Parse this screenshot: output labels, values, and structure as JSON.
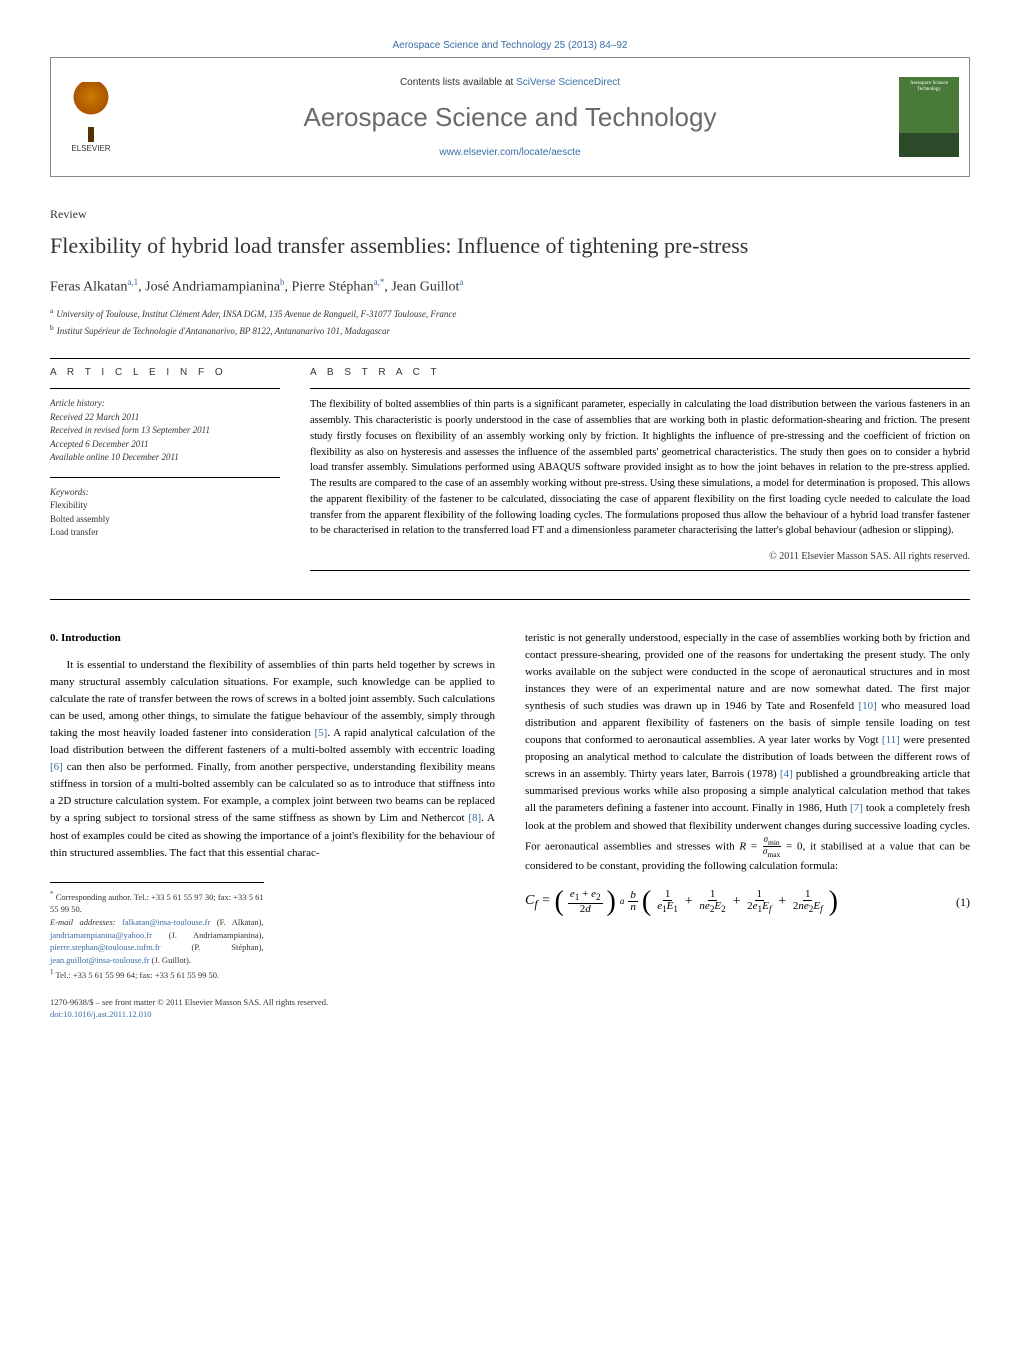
{
  "journal_ref": "Aerospace Science and Technology 25 (2013) 84–92",
  "header": {
    "publisher": "ELSEVIER",
    "contents_prefix": "Contents lists available at ",
    "contents_link": "SciVerse ScienceDirect",
    "journal_name": "Aerospace Science and Technology",
    "journal_url": "www.elsevier.com/locate/aescte",
    "cover_text": "Aerospace Science Technology"
  },
  "article": {
    "type": "Review",
    "title": "Flexibility of hybrid load transfer assemblies: Influence of tightening pre-stress",
    "authors_html": "Feras Alkatan",
    "authors": [
      {
        "name": "Feras Alkatan",
        "sup": "a,1"
      },
      {
        "name": "José Andriamampianina",
        "sup": "b"
      },
      {
        "name": "Pierre Stéphan",
        "sup": "a,*"
      },
      {
        "name": "Jean Guillot",
        "sup": "a"
      }
    ],
    "affiliations": [
      {
        "label": "a",
        "text": "University of Toulouse, Institut Clément Ader, INSA DGM, 135 Avenue de Rangueil, F-31077 Toulouse, France"
      },
      {
        "label": "b",
        "text": "Institut Supérieur de Technologie d'Antananarivo, BP 8122, Antananarivo 101, Madagascar"
      }
    ]
  },
  "info": {
    "heading": "A R T I C L E   I N F O",
    "history_label": "Article history:",
    "history": [
      "Received 22 March 2011",
      "Received in revised form 13 September 2011",
      "Accepted 6 December 2011",
      "Available online 10 December 2011"
    ],
    "keywords_label": "Keywords:",
    "keywords": [
      "Flexibility",
      "Bolted assembly",
      "Load transfer"
    ]
  },
  "abstract": {
    "heading": "A B S T R A C T",
    "text": "The flexibility of bolted assemblies of thin parts is a significant parameter, especially in calculating the load distribution between the various fasteners in an assembly. This characteristic is poorly understood in the case of assemblies that are working both in plastic deformation-shearing and friction. The present study firstly focuses on flexibility of an assembly working only by friction. It highlights the influence of pre-stressing and the coefficient of friction on flexibility as also on hysteresis and assesses the influence of the assembled parts' geometrical characteristics. The study then goes on to consider a hybrid load transfer assembly. Simulations performed using ABAQUS software provided insight as to how the joint behaves in relation to the pre-stress applied. The results are compared to the case of an assembly working without pre-stress. Using these simulations, a model for determination is proposed. This allows the apparent flexibility of the fastener to be calculated, dissociating the case of apparent flexibility on the first loading cycle needed to calculate the load transfer from the apparent flexibility of the following loading cycles. The formulations proposed thus allow the behaviour of a hybrid load transfer fastener to be characterised in relation to the transferred load FT and a dimensionless parameter characterising the latter's global behaviour (adhesion or slipping).",
    "copyright": "© 2011 Elsevier Masson SAS. All rights reserved."
  },
  "body": {
    "section_heading": "0. Introduction",
    "col1_p1": "It is essential to understand the flexibility of assemblies of thin parts held together by screws in many structural assembly calculation situations. For example, such knowledge can be applied to calculate the rate of transfer between the rows of screws in a bolted joint assembly. Such calculations can be used, among other things, to simulate the fatigue behaviour of the assembly, simply through taking the most heavily loaded fastener into consideration [5]. A rapid analytical calculation of the load distribution between the different fasteners of a multi-bolted assembly with eccentric loading [6] can then also be performed. Finally, from another perspective, understanding flexibility means stiffness in torsion of a multi-bolted assembly can be calculated so as to introduce that stiffness into a 2D structure calculation system. For example, a complex joint between two beams can be replaced by a spring subject to torsional stress of the same stiffness as shown by Lim and Nethercot [8]. A host of examples could be cited as showing the importance of a joint's flexibility for the behaviour of thin structured assemblies. The fact that this essential charac-",
    "col2_p1": "teristic is not generally understood, especially in the case of assemblies working both by friction and contact pressure-shearing, provided one of the reasons for undertaking the present study. The only works available on the subject were conducted in the scope of aeronautical structures and in most instances they were of an experimental nature and are now somewhat dated. The first major synthesis of such studies was drawn up in 1946 by Tate and Rosenfeld [10] who measured load distribution and apparent flexibility of fasteners on the basis of simple tensile loading on test coupons that conformed to aeronautical assemblies. A year later works by Vogt [11] were presented proposing an analytical method to calculate the distribution of loads between the different rows of screws in an assembly. Thirty years later, Barrois (1978) [4] published a groundbreaking article that summarised previous works while also proposing a simple analytical calculation method that takes all the parameters defining a fastener into account. Finally in 1986, Huth [7] took a completely fresh look at the problem and showed that flexibility underwent changes during successive loading cycles. For aeronautical assemblies and stresses with R = σmin/σmax = 0, it stabilised at a value that can be considered to be constant, providing the following calculation formula:",
    "refs": {
      "r4": "[4]",
      "r5": "[5]",
      "r6": "[6]",
      "r7": "[7]",
      "r8": "[8]",
      "r10": "[10]",
      "r11": "[11]"
    },
    "equation": {
      "label": "(1)",
      "lhs": "Cf",
      "term1_num": "e1 + e2",
      "term1_den": "2d",
      "exp": "a",
      "coef_num": "b",
      "coef_den": "n",
      "f1_num": "1",
      "f1_den": "e1E1",
      "f2_num": "1",
      "f2_den": "ne2E2",
      "f3_num": "1",
      "f3_den": "2e1Ef",
      "f4_num": "1",
      "f4_den": "2ne2Ef"
    }
  },
  "footnotes": {
    "corr_label": "*",
    "corr_text": "Corresponding author. Tel.: +33 5 61 55 97 30; fax: +33 5 61 55 99 50.",
    "email_label": "E-mail addresses:",
    "emails": [
      {
        "addr": "falkatan@insa-toulouse.fr",
        "who": "(F. Alkatan)"
      },
      {
        "addr": "jandriamampianina@yahoo.fr",
        "who": "(J. Andriamampianina)"
      },
      {
        "addr": "pierre.stephan@toulouse.iufm.fr",
        "who": "(P. Stéphan)"
      },
      {
        "addr": "jean.guillot@insa-toulouse.fr",
        "who": "(J. Guillot)"
      }
    ],
    "note1_label": "1",
    "note1_text": "Tel.: +33 5 61 55 99 64; fax: +33 5 61 55 99 50."
  },
  "footer": {
    "issn_line": "1270-9638/$ – see front matter © 2011 Elsevier Masson SAS. All rights reserved.",
    "doi": "doi:10.1016/j.ast.2011.12.010"
  },
  "colors": {
    "link": "#3a6ea5",
    "text": "#000000",
    "grey": "#6a6a6a",
    "border": "#888888"
  }
}
